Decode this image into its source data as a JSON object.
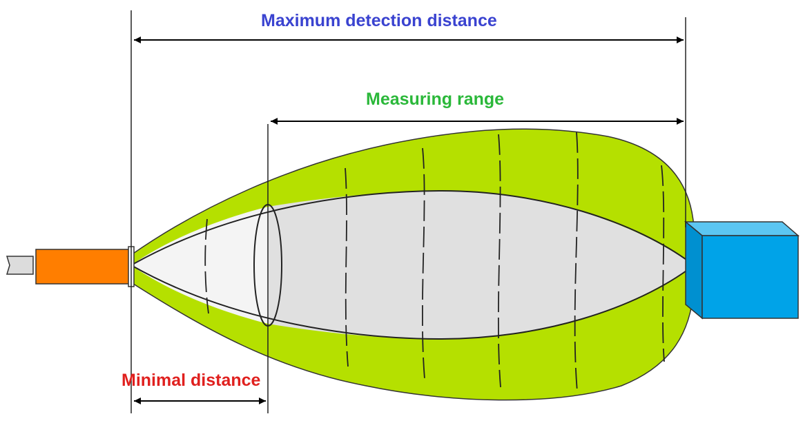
{
  "labels": {
    "maximum_detection_distance": "Maximum detection distance",
    "measuring_range": "Measuring range",
    "minimal_distance": "Minimal distance"
  },
  "colors": {
    "maximum_detection_distance": "#3a43d0",
    "measuring_range": "#2bb83a",
    "minimal_distance": "#e0201e",
    "outer_lobe": "#b5e000",
    "inner_lobe": "#e0e0e0",
    "near_zone": "#f4f4f4",
    "sensor": "#ff7e00",
    "target": "#00a3e8"
  },
  "icons": {
    "sensor": "sensor-icon",
    "target": "target-box-icon"
  }
}
